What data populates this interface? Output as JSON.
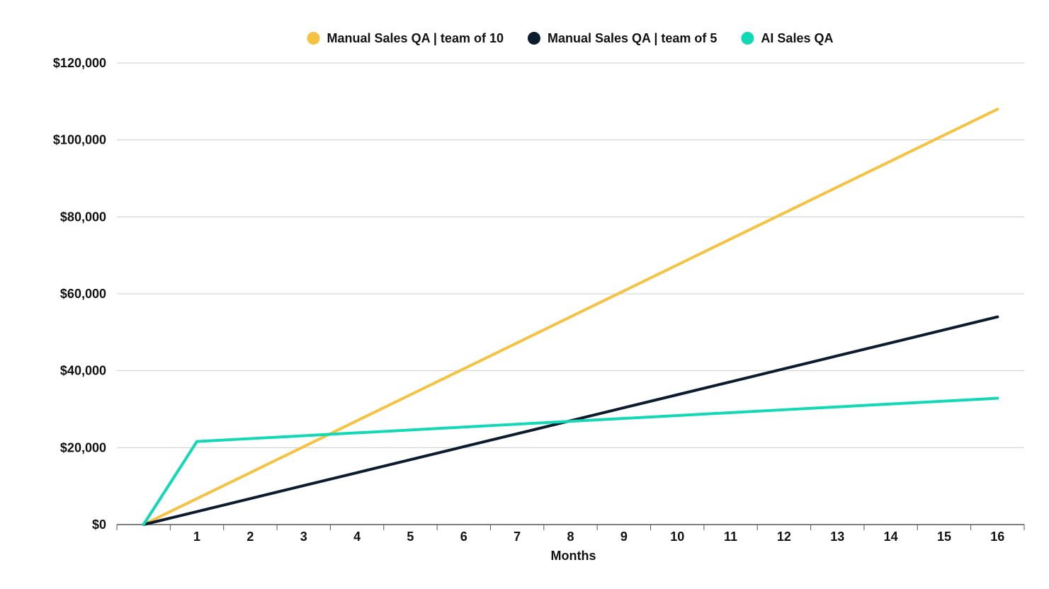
{
  "chart_data": {
    "type": "line",
    "xlabel": "Months",
    "ylabel": "",
    "x": [
      0,
      1,
      2,
      3,
      4,
      5,
      6,
      7,
      8,
      9,
      10,
      11,
      12,
      13,
      14,
      15,
      16
    ],
    "x_tick_labels": [
      "1",
      "2",
      "3",
      "4",
      "5",
      "6",
      "7",
      "8",
      "9",
      "10",
      "11",
      "12",
      "13",
      "14",
      "15",
      "16"
    ],
    "xlim": [
      -0.5,
      16.5
    ],
    "ylim": [
      0,
      120000
    ],
    "y_ticks": [
      0,
      20000,
      40000,
      60000,
      80000,
      100000,
      120000
    ],
    "y_tick_labels": [
      "$0",
      "$20,000",
      "$40,000",
      "$60,000",
      "$80,000",
      "$100,000",
      "$120,000"
    ],
    "grid": "horizontal",
    "legend_position": "top-center",
    "series": [
      {
        "name": "Manual Sales QA | team of 10",
        "color": "#F5C242",
        "values": [
          0,
          6750,
          13500,
          20250,
          27000,
          33750,
          40500,
          47250,
          54000,
          60750,
          67500,
          74250,
          81000,
          87750,
          94500,
          101250,
          108000
        ]
      },
      {
        "name": "Manual Sales QA | team of 5",
        "color": "#0D1B2E",
        "values": [
          0,
          3375,
          6750,
          10125,
          13500,
          16875,
          20250,
          23625,
          27000,
          30375,
          33750,
          37125,
          40500,
          43875,
          47250,
          50625,
          54000
        ]
      },
      {
        "name": "AI Sales QA",
        "color": "#11D9B6",
        "values": [
          0,
          21600,
          22350,
          23100,
          23850,
          24600,
          25350,
          26100,
          26850,
          27600,
          28350,
          29100,
          29850,
          30600,
          31350,
          32100,
          32850
        ]
      }
    ]
  }
}
